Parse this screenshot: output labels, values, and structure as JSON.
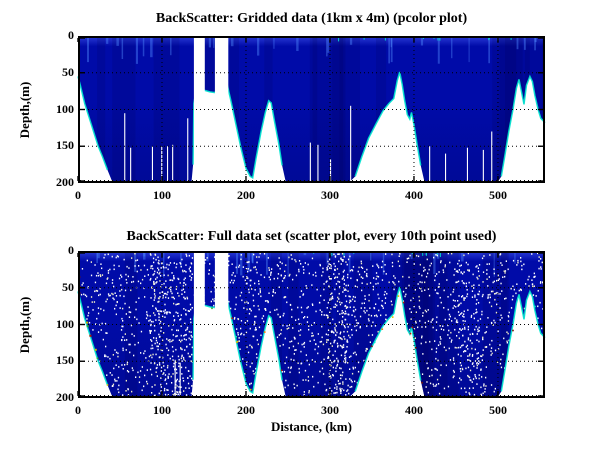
{
  "figure": {
    "background": "#ffffff"
  },
  "colors": {
    "fill_top": "#2a3cd8",
    "fill_main": "#000ba8",
    "fill_deep": "#000a97",
    "boundary_cyan": "#00e6cf",
    "grid": "#000000",
    "axis": "#000000",
    "speckle_white": "#ffffff",
    "speckle_cream": "#f2edc4",
    "edge_speck_palette": [
      "#b81800",
      "#7a1200",
      "#d8c400",
      "#2fae2f",
      "#ff7a00",
      "#00e6cf"
    ]
  },
  "chart_data": [
    {
      "type": "heatmap",
      "title": "BackScatter: Gridded data (1km x 4m) (pcolor plot)",
      "xlabel": "",
      "ylabel": "Depth,(m)",
      "xlim": [
        0,
        556
      ],
      "ylim": [
        0,
        200
      ],
      "y_reversed": true,
      "grid": "dotted",
      "x_ticks": [
        0,
        100,
        200,
        300,
        400,
        500
      ],
      "y_ticks": [
        0,
        50,
        100,
        150,
        200
      ],
      "seafloor_profile": [
        [
          0,
          55
        ],
        [
          3,
          68
        ],
        [
          8,
          92
        ],
        [
          13,
          110
        ],
        [
          18,
          128
        ],
        [
          24,
          150
        ],
        [
          29,
          164
        ],
        [
          35,
          182
        ],
        [
          40,
          196
        ],
        [
          43,
          200
        ],
        [
          135,
          200
        ],
        [
          137,
          175
        ],
        [
          138,
          92
        ],
        [
          140,
          78
        ],
        [
          151,
          74
        ],
        [
          157,
          76
        ],
        [
          163,
          77
        ],
        [
          170,
          66
        ],
        [
          176,
          58
        ],
        [
          182,
          88
        ],
        [
          188,
          120
        ],
        [
          194,
          152
        ],
        [
          200,
          180
        ],
        [
          205,
          191
        ],
        [
          208,
          193
        ],
        [
          212,
          166
        ],
        [
          218,
          130
        ],
        [
          223,
          104
        ],
        [
          227,
          88
        ],
        [
          230,
          91
        ],
        [
          234,
          116
        ],
        [
          239,
          146
        ],
        [
          243,
          176
        ],
        [
          247,
          197
        ],
        [
          250,
          200
        ],
        [
          322,
          200
        ],
        [
          330,
          191
        ],
        [
          338,
          164
        ],
        [
          346,
          139
        ],
        [
          355,
          119
        ],
        [
          363,
          102
        ],
        [
          370,
          92
        ],
        [
          376,
          85
        ],
        [
          380,
          61
        ],
        [
          383,
          49
        ],
        [
          386,
          66
        ],
        [
          389,
          88
        ],
        [
          392,
          107
        ],
        [
          395,
          113
        ],
        [
          397,
          104
        ],
        [
          400,
          121
        ],
        [
          404,
          149
        ],
        [
          408,
          176
        ],
        [
          412,
          196
        ],
        [
          415,
          200
        ],
        [
          499,
          200
        ],
        [
          504,
          191
        ],
        [
          508,
          164
        ],
        [
          513,
          129
        ],
        [
          518,
          99
        ],
        [
          522,
          71
        ],
        [
          525,
          59
        ],
        [
          528,
          76
        ],
        [
          531,
          93
        ],
        [
          534,
          67
        ],
        [
          538,
          55
        ],
        [
          541,
          62
        ],
        [
          544,
          81
        ],
        [
          548,
          101
        ],
        [
          551,
          112
        ],
        [
          556,
          118
        ]
      ],
      "gap_columns": [
        [
          138,
          151
        ],
        [
          163,
          179
        ]
      ],
      "dropout_lines": [
        [
          55,
          105
        ],
        [
          62,
          152
        ],
        [
          88,
          150
        ],
        [
          99,
          150
        ],
        [
          106,
          150
        ],
        [
          112,
          148
        ],
        [
          130,
          112
        ],
        [
          276,
          145
        ],
        [
          285,
          148
        ],
        [
          300,
          168
        ],
        [
          324,
          95
        ],
        [
          418,
          150
        ],
        [
          437,
          160
        ],
        [
          463,
          152
        ],
        [
          482,
          155
        ],
        [
          492,
          130
        ]
      ]
    },
    {
      "type": "scatter",
      "title": "BackScatter: Full data set (scatter plot, every 10th point used)",
      "xlabel": "Distance, (km)",
      "ylabel": "Depth,(m)",
      "xlim": [
        0,
        556
      ],
      "ylim": [
        0,
        200
      ],
      "y_reversed": true,
      "grid": "dotted",
      "x_ticks": [
        0,
        100,
        200,
        300,
        400,
        500
      ],
      "y_ticks": [
        0,
        50,
        100,
        150,
        200
      ],
      "profile_same_as_chart": 0,
      "gap_columns": [
        [
          138,
          151
        ],
        [
          163,
          179
        ]
      ],
      "dropout_lines": [
        [
          115,
          148
        ],
        [
          121,
          152
        ]
      ],
      "speckle_bands": [
        [
          85,
          135,
          2.2
        ],
        [
          200,
          230,
          1.5
        ],
        [
          295,
          325,
          2.6
        ],
        [
          450,
          478,
          1.8
        ]
      ],
      "left_edge_specks": [
        [
          0.4,
          34,
          "#7a1200"
        ],
        [
          0.8,
          48,
          "#aa1a00"
        ],
        [
          0.5,
          56,
          "#7a1200"
        ],
        [
          9.6,
          96,
          "#c8ba00"
        ],
        [
          10.3,
          101,
          "#2fae2f"
        ],
        [
          13.6,
          114,
          "#b81800"
        ],
        [
          20,
          133,
          "#c8ba00"
        ]
      ]
    }
  ]
}
